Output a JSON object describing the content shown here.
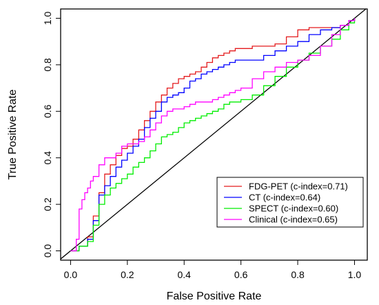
{
  "chart_data": {
    "type": "line",
    "title": "",
    "xlabel": "False Positive Rate",
    "ylabel": "True Positive Rate",
    "xlim": [
      -0.035,
      1.045
    ],
    "ylim": [
      -0.04,
      1.04
    ],
    "xticks": [
      "0.0",
      "0.2",
      "0.4",
      "0.6",
      "0.8",
      "1.0"
    ],
    "yticks": [
      "0.0",
      "0.2",
      "0.4",
      "0.6",
      "0.8",
      "1.0"
    ],
    "grid": false,
    "legend_position": "bottom-right",
    "reference_line": {
      "x": [
        0,
        1
      ],
      "y": [
        0,
        1
      ],
      "color": "#000000"
    },
    "series": [
      {
        "name": "FDG-PET (c-index=0.71)",
        "color": "#e41a1c",
        "x": [
          0.0,
          0.03,
          0.06,
          0.08,
          0.1,
          0.12,
          0.14,
          0.16,
          0.18,
          0.2,
          0.22,
          0.24,
          0.26,
          0.28,
          0.3,
          0.32,
          0.34,
          0.36,
          0.38,
          0.4,
          0.42,
          0.44,
          0.46,
          0.48,
          0.5,
          0.52,
          0.54,
          0.56,
          0.58,
          0.6,
          0.64,
          0.68,
          0.72,
          0.76,
          0.8,
          0.84,
          0.88,
          0.92,
          0.95,
          0.98,
          1.0
        ],
        "y": [
          0.0,
          0.02,
          0.06,
          0.15,
          0.25,
          0.33,
          0.37,
          0.41,
          0.44,
          0.45,
          0.48,
          0.52,
          0.56,
          0.6,
          0.64,
          0.67,
          0.7,
          0.72,
          0.74,
          0.75,
          0.76,
          0.77,
          0.79,
          0.81,
          0.83,
          0.84,
          0.85,
          0.86,
          0.87,
          0.87,
          0.88,
          0.88,
          0.89,
          0.92,
          0.95,
          0.96,
          0.96,
          0.96,
          0.97,
          0.99,
          1.0
        ]
      },
      {
        "name": "CT (c-index=0.64)",
        "color": "#0000ff",
        "x": [
          0.0,
          0.03,
          0.06,
          0.08,
          0.1,
          0.12,
          0.14,
          0.16,
          0.18,
          0.2,
          0.22,
          0.24,
          0.26,
          0.28,
          0.3,
          0.32,
          0.34,
          0.36,
          0.38,
          0.4,
          0.42,
          0.44,
          0.46,
          0.48,
          0.5,
          0.52,
          0.54,
          0.56,
          0.58,
          0.6,
          0.64,
          0.68,
          0.72,
          0.76,
          0.8,
          0.84,
          0.88,
          0.92,
          0.95,
          0.98,
          1.0
        ],
        "y": [
          0.0,
          0.02,
          0.05,
          0.13,
          0.24,
          0.28,
          0.32,
          0.36,
          0.39,
          0.42,
          0.45,
          0.48,
          0.53,
          0.57,
          0.6,
          0.64,
          0.66,
          0.67,
          0.68,
          0.7,
          0.73,
          0.74,
          0.76,
          0.77,
          0.78,
          0.79,
          0.8,
          0.81,
          0.82,
          0.82,
          0.82,
          0.84,
          0.86,
          0.88,
          0.9,
          0.93,
          0.95,
          0.96,
          0.97,
          0.99,
          1.0
        ]
      },
      {
        "name": "SPECT (c-index=0.60)",
        "color": "#00ee00",
        "x": [
          0.0,
          0.03,
          0.06,
          0.08,
          0.1,
          0.12,
          0.14,
          0.16,
          0.18,
          0.2,
          0.22,
          0.24,
          0.26,
          0.28,
          0.3,
          0.32,
          0.34,
          0.36,
          0.38,
          0.4,
          0.42,
          0.44,
          0.46,
          0.48,
          0.5,
          0.52,
          0.54,
          0.56,
          0.58,
          0.6,
          0.64,
          0.68,
          0.72,
          0.76,
          0.8,
          0.84,
          0.88,
          0.92,
          0.95,
          0.98,
          1.0
        ],
        "y": [
          0.0,
          0.02,
          0.04,
          0.11,
          0.2,
          0.24,
          0.27,
          0.29,
          0.31,
          0.33,
          0.36,
          0.38,
          0.4,
          0.43,
          0.46,
          0.49,
          0.5,
          0.51,
          0.53,
          0.55,
          0.56,
          0.57,
          0.58,
          0.59,
          0.6,
          0.61,
          0.63,
          0.64,
          0.64,
          0.65,
          0.67,
          0.71,
          0.75,
          0.79,
          0.82,
          0.85,
          0.88,
          0.91,
          0.95,
          0.98,
          1.0
        ]
      },
      {
        "name": "Clinical (c-index=0.65)",
        "color": "#ff00ff",
        "x": [
          0.0,
          0.02,
          0.03,
          0.04,
          0.05,
          0.06,
          0.07,
          0.08,
          0.1,
          0.12,
          0.14,
          0.16,
          0.18,
          0.2,
          0.22,
          0.24,
          0.26,
          0.28,
          0.3,
          0.32,
          0.34,
          0.36,
          0.38,
          0.4,
          0.42,
          0.44,
          0.46,
          0.48,
          0.5,
          0.52,
          0.54,
          0.56,
          0.58,
          0.6,
          0.64,
          0.68,
          0.72,
          0.76,
          0.8,
          0.84,
          0.88,
          0.92,
          0.95,
          0.98,
          1.0
        ],
        "y": [
          0.0,
          0.05,
          0.18,
          0.22,
          0.25,
          0.27,
          0.3,
          0.32,
          0.37,
          0.4,
          0.4,
          0.42,
          0.45,
          0.46,
          0.46,
          0.47,
          0.49,
          0.52,
          0.55,
          0.58,
          0.6,
          0.61,
          0.61,
          0.62,
          0.63,
          0.64,
          0.64,
          0.64,
          0.65,
          0.66,
          0.67,
          0.68,
          0.69,
          0.7,
          0.74,
          0.77,
          0.79,
          0.81,
          0.82,
          0.84,
          0.88,
          0.93,
          0.97,
          0.99,
          1.0
        ]
      }
    ]
  }
}
